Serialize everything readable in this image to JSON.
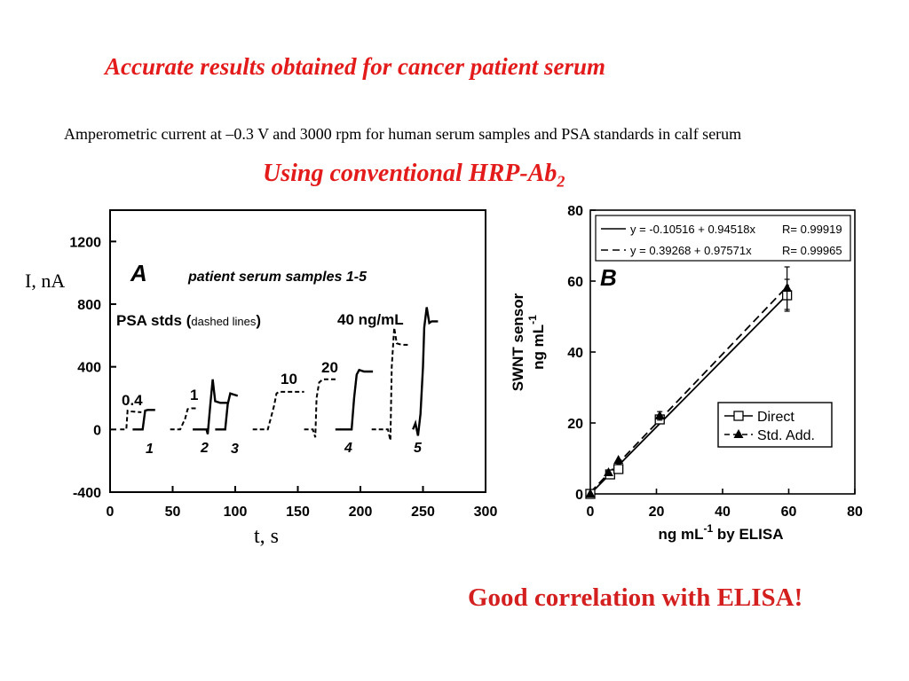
{
  "slide": {
    "title": "Accurate results obtained for cancer patient serum",
    "description": "Amperometric current at –0.3 V and 3000 rpm for human serum samples and PSA standards in calf serum",
    "subtitle_main": "Using conventional HRP-Ab",
    "subtitle_sub": "2",
    "conclusion": "Good correlation with ELISA!"
  },
  "chart_data": [
    {
      "type": "line",
      "panel_label": "A",
      "xlabel": "t, s",
      "ylabel": "I, nA",
      "xlim": [
        0,
        300
      ],
      "ylim": [
        -400,
        1400
      ],
      "xticks": [
        0,
        50,
        100,
        150,
        200,
        250,
        300
      ],
      "yticks": [
        -400,
        0,
        400,
        800,
        1200
      ],
      "annotation_top": "patient serum samples 1-5",
      "legend_text_bold": "PSA stds (",
      "legend_text_small": "dashed lines",
      "legend_text_close": ")",
      "grid": false,
      "standards": [
        {
          "label": "0.4",
          "x": [
            8,
            10,
            13,
            14,
            17,
            25
          ],
          "y": [
            0,
            0,
            0,
            120,
            115,
            110
          ]
        },
        {
          "label": "1",
          "x": [
            48,
            56,
            60,
            62,
            65,
            69
          ],
          "y": [
            0,
            0,
            70,
            130,
            135,
            135
          ]
        },
        {
          "label": "10",
          "x": [
            114,
            126,
            131,
            133,
            135,
            155
          ],
          "y": [
            0,
            0,
            150,
            230,
            240,
            240
          ]
        },
        {
          "label": "20",
          "x": [
            155,
            162,
            164,
            165,
            167,
            170,
            181
          ],
          "y": [
            0,
            0,
            -50,
            200,
            300,
            320,
            320
          ]
        },
        {
          "label": "40 ng/mL",
          "x": [
            209,
            222,
            224,
            225,
            227,
            229,
            233,
            240
          ],
          "y": [
            0,
            0,
            -70,
            400,
            650,
            550,
            540,
            540
          ]
        }
      ],
      "samples": [
        {
          "label": "1",
          "x": [
            18,
            22,
            26,
            28,
            30,
            36
          ],
          "y": [
            0,
            0,
            0,
            120,
            125,
            125
          ]
        },
        {
          "label": "2",
          "x": [
            66,
            74,
            77,
            78,
            80,
            82,
            84,
            88,
            95
          ],
          "y": [
            0,
            0,
            0,
            -30,
            150,
            320,
            180,
            170,
            170
          ]
        },
        {
          "label": "3",
          "x": [
            84,
            89,
            92,
            94,
            96,
            98,
            102
          ],
          "y": [
            0,
            0,
            0,
            160,
            230,
            225,
            215
          ]
        },
        {
          "label": "4",
          "x": [
            180,
            190,
            193,
            195,
            197,
            199,
            203,
            210
          ],
          "y": [
            0,
            0,
            0,
            200,
            350,
            380,
            370,
            370
          ]
        },
        {
          "label": "5",
          "x": [
            242,
            244,
            246,
            248,
            250,
            251,
            253,
            255,
            257,
            262
          ],
          "y": [
            0,
            40,
            -40,
            100,
            400,
            650,
            780,
            680,
            690,
            690
          ]
        }
      ]
    },
    {
      "type": "scatter",
      "panel_label": "B",
      "xlabel_main": "ng mL",
      "xlabel_exp": "-1",
      "xlabel_tail": " by ELISA",
      "ylabel_line1": "SWNT sensor",
      "ylabel_line2_main": "ng mL",
      "ylabel_line2_exp": "-1",
      "xlim": [
        0,
        80
      ],
      "ylim": [
        0,
        80
      ],
      "xticks": [
        0,
        20,
        40,
        60,
        80
      ],
      "yticks": [
        0,
        20,
        40,
        60,
        80
      ],
      "grid": false,
      "fit_lines": [
        {
          "equation": "y = -0.10516 + 0.94518x",
          "r": "R= 0.99919",
          "intercept": -0.10516,
          "slope": 0.94518,
          "style": "solid"
        },
        {
          "equation": "y = 0.39268 + 0.97571x",
          "r": "R= 0.99965",
          "intercept": 0.39268,
          "slope": 0.97571,
          "style": "dashed"
        }
      ],
      "series": [
        {
          "name": "Direct",
          "marker": "open-square",
          "x": [
            0,
            6,
            8.5,
            21,
            59.5
          ],
          "y": [
            0,
            5.5,
            7,
            21,
            56
          ],
          "err": [
            0,
            0,
            0,
            1.2,
            4.5
          ]
        },
        {
          "name": "Std. Add.",
          "marker": "filled-triangle",
          "x": [
            0,
            5.5,
            8.5,
            21,
            59.5
          ],
          "y": [
            0,
            6,
            9.5,
            22,
            58
          ],
          "err": [
            0,
            0,
            0,
            1.2,
            6
          ]
        }
      ]
    }
  ]
}
